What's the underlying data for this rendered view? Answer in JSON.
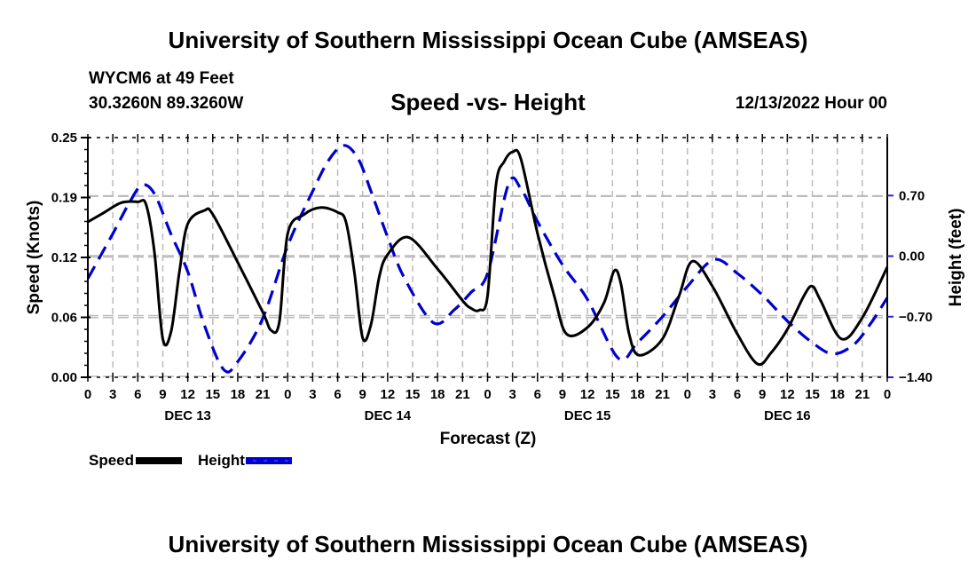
{
  "header": {
    "title": "University of Southern Mississippi Ocean Cube (AMSEAS)",
    "station": "WYCM6 at 49 Feet",
    "location": "30.3260N  89.3260W",
    "subtitle": "Speed -vs- Height",
    "datetime": "12/13/2022 Hour 00"
  },
  "footer": {
    "title": "University of Southern Mississippi Ocean Cube (AMSEAS)"
  },
  "chart_data": {
    "type": "line",
    "title": "Speed -vs- Height",
    "xlabel": "Forecast (Z)",
    "ylabel": "Speed (Knots)",
    "y2label": "Height (feet)",
    "xlim": [
      0,
      96
    ],
    "ylim": [
      0,
      0.25
    ],
    "y2lim": [
      -1.4,
      1.37
    ],
    "grid": true,
    "legend_position": "bottom-left",
    "x_ticks": [
      {
        "hour": 0,
        "label": "0"
      },
      {
        "hour": 3,
        "label": "3"
      },
      {
        "hour": 6,
        "label": "6"
      },
      {
        "hour": 9,
        "label": "9"
      },
      {
        "hour": 12,
        "label": "12"
      },
      {
        "hour": 15,
        "label": "15"
      },
      {
        "hour": 18,
        "label": "18"
      },
      {
        "hour": 21,
        "label": "21"
      },
      {
        "hour": 24,
        "label": "0"
      },
      {
        "hour": 27,
        "label": "3"
      },
      {
        "hour": 30,
        "label": "6"
      },
      {
        "hour": 33,
        "label": "9"
      },
      {
        "hour": 36,
        "label": "12"
      },
      {
        "hour": 39,
        "label": "15"
      },
      {
        "hour": 42,
        "label": "18"
      },
      {
        "hour": 45,
        "label": "21"
      },
      {
        "hour": 48,
        "label": "0"
      },
      {
        "hour": 51,
        "label": "3"
      },
      {
        "hour": 54,
        "label": "6"
      },
      {
        "hour": 57,
        "label": "9"
      },
      {
        "hour": 60,
        "label": "12"
      },
      {
        "hour": 63,
        "label": "15"
      },
      {
        "hour": 66,
        "label": "18"
      },
      {
        "hour": 69,
        "label": "21"
      },
      {
        "hour": 72,
        "label": "0"
      },
      {
        "hour": 75,
        "label": "3"
      },
      {
        "hour": 78,
        "label": "6"
      },
      {
        "hour": 81,
        "label": "9"
      },
      {
        "hour": 84,
        "label": "12"
      },
      {
        "hour": 87,
        "label": "15"
      },
      {
        "hour": 90,
        "label": "18"
      },
      {
        "hour": 93,
        "label": "21"
      },
      {
        "hour": 96,
        "label": "0"
      }
    ],
    "day_labels": [
      {
        "hour": 12,
        "label": "DEC 13"
      },
      {
        "hour": 36,
        "label": "DEC 14"
      },
      {
        "hour": 60,
        "label": "DEC 15"
      },
      {
        "hour": 84,
        "label": "DEC 16"
      }
    ],
    "y_ticks": [
      {
        "value": 0.0,
        "label": "0.00"
      },
      {
        "value": 0.0625,
        "label": "0.06"
      },
      {
        "value": 0.125,
        "label": "0.12"
      },
      {
        "value": 0.1875,
        "label": "0.19"
      },
      {
        "value": 0.25,
        "label": "0.25"
      }
    ],
    "y2_ticks": [
      {
        "value": 0.7,
        "label": "0.70"
      },
      {
        "value": 0.0,
        "label": "0.00"
      },
      {
        "value": -0.7,
        "label": "−0.70"
      },
      {
        "value": -1.4,
        "label": "−1.40"
      }
    ],
    "series": [
      {
        "name": "Speed",
        "axis": "left",
        "color": "#000000",
        "style": "solid",
        "x": [
          0,
          2,
          4,
          6,
          7,
          8,
          9,
          10,
          11,
          12,
          14,
          15,
          18,
          21,
          22,
          23,
          24,
          26,
          28,
          30,
          31,
          32,
          33,
          34,
          35,
          36,
          38.5,
          42,
          45,
          46,
          47,
          48,
          49,
          50,
          51,
          52,
          54,
          56,
          57.5,
          60,
          62,
          63.2,
          64,
          65,
          66.2,
          69,
          71,
          72.6,
          75,
          78,
          80.4,
          82,
          84,
          86,
          87,
          88,
          90.5,
          93,
          96
        ],
        "values": [
          0.162,
          0.172,
          0.182,
          0.183,
          0.18,
          0.13,
          0.04,
          0.048,
          0.11,
          0.16,
          0.174,
          0.17,
          0.12,
          0.068,
          0.049,
          0.058,
          0.15,
          0.17,
          0.177,
          0.172,
          0.162,
          0.11,
          0.041,
          0.055,
          0.105,
          0.128,
          0.146,
          0.113,
          0.08,
          0.072,
          0.07,
          0.085,
          0.2,
          0.225,
          0.235,
          0.228,
          0.15,
          0.085,
          0.045,
          0.052,
          0.078,
          0.111,
          0.098,
          0.045,
          0.023,
          0.04,
          0.085,
          0.121,
          0.095,
          0.045,
          0.014,
          0.025,
          0.05,
          0.085,
          0.095,
          0.08,
          0.04,
          0.062,
          0.115
        ]
      },
      {
        "name": "Height",
        "axis": "right",
        "color": "#0000cc",
        "style": "dashed",
        "x": [
          0,
          3,
          5,
          6.5,
          8,
          10,
          12,
          14,
          16.3,
          18,
          21,
          24,
          27,
          29,
          30.8,
          32.5,
          34,
          36,
          38,
          41.5,
          44,
          46,
          48,
          50.5,
          52,
          54,
          57,
          60,
          63.7,
          66,
          69,
          72,
          75.2,
          78,
          81,
          84,
          87,
          89.5,
          92,
          94,
          96
        ],
        "values": [
          -0.26,
          0.26,
          0.62,
          0.82,
          0.72,
          0.25,
          -0.18,
          -0.8,
          -1.31,
          -1.22,
          -0.72,
          0.12,
          0.75,
          1.12,
          1.28,
          1.12,
          0.75,
          0.22,
          -0.25,
          -0.77,
          -0.62,
          -0.42,
          -0.2,
          0.83,
          0.78,
          0.4,
          -0.1,
          -0.5,
          -1.18,
          -1.0,
          -0.7,
          -0.35,
          -0.04,
          -0.2,
          -0.45,
          -0.75,
          -1.0,
          -1.13,
          -1.02,
          -0.78,
          -0.48
        ]
      }
    ]
  }
}
